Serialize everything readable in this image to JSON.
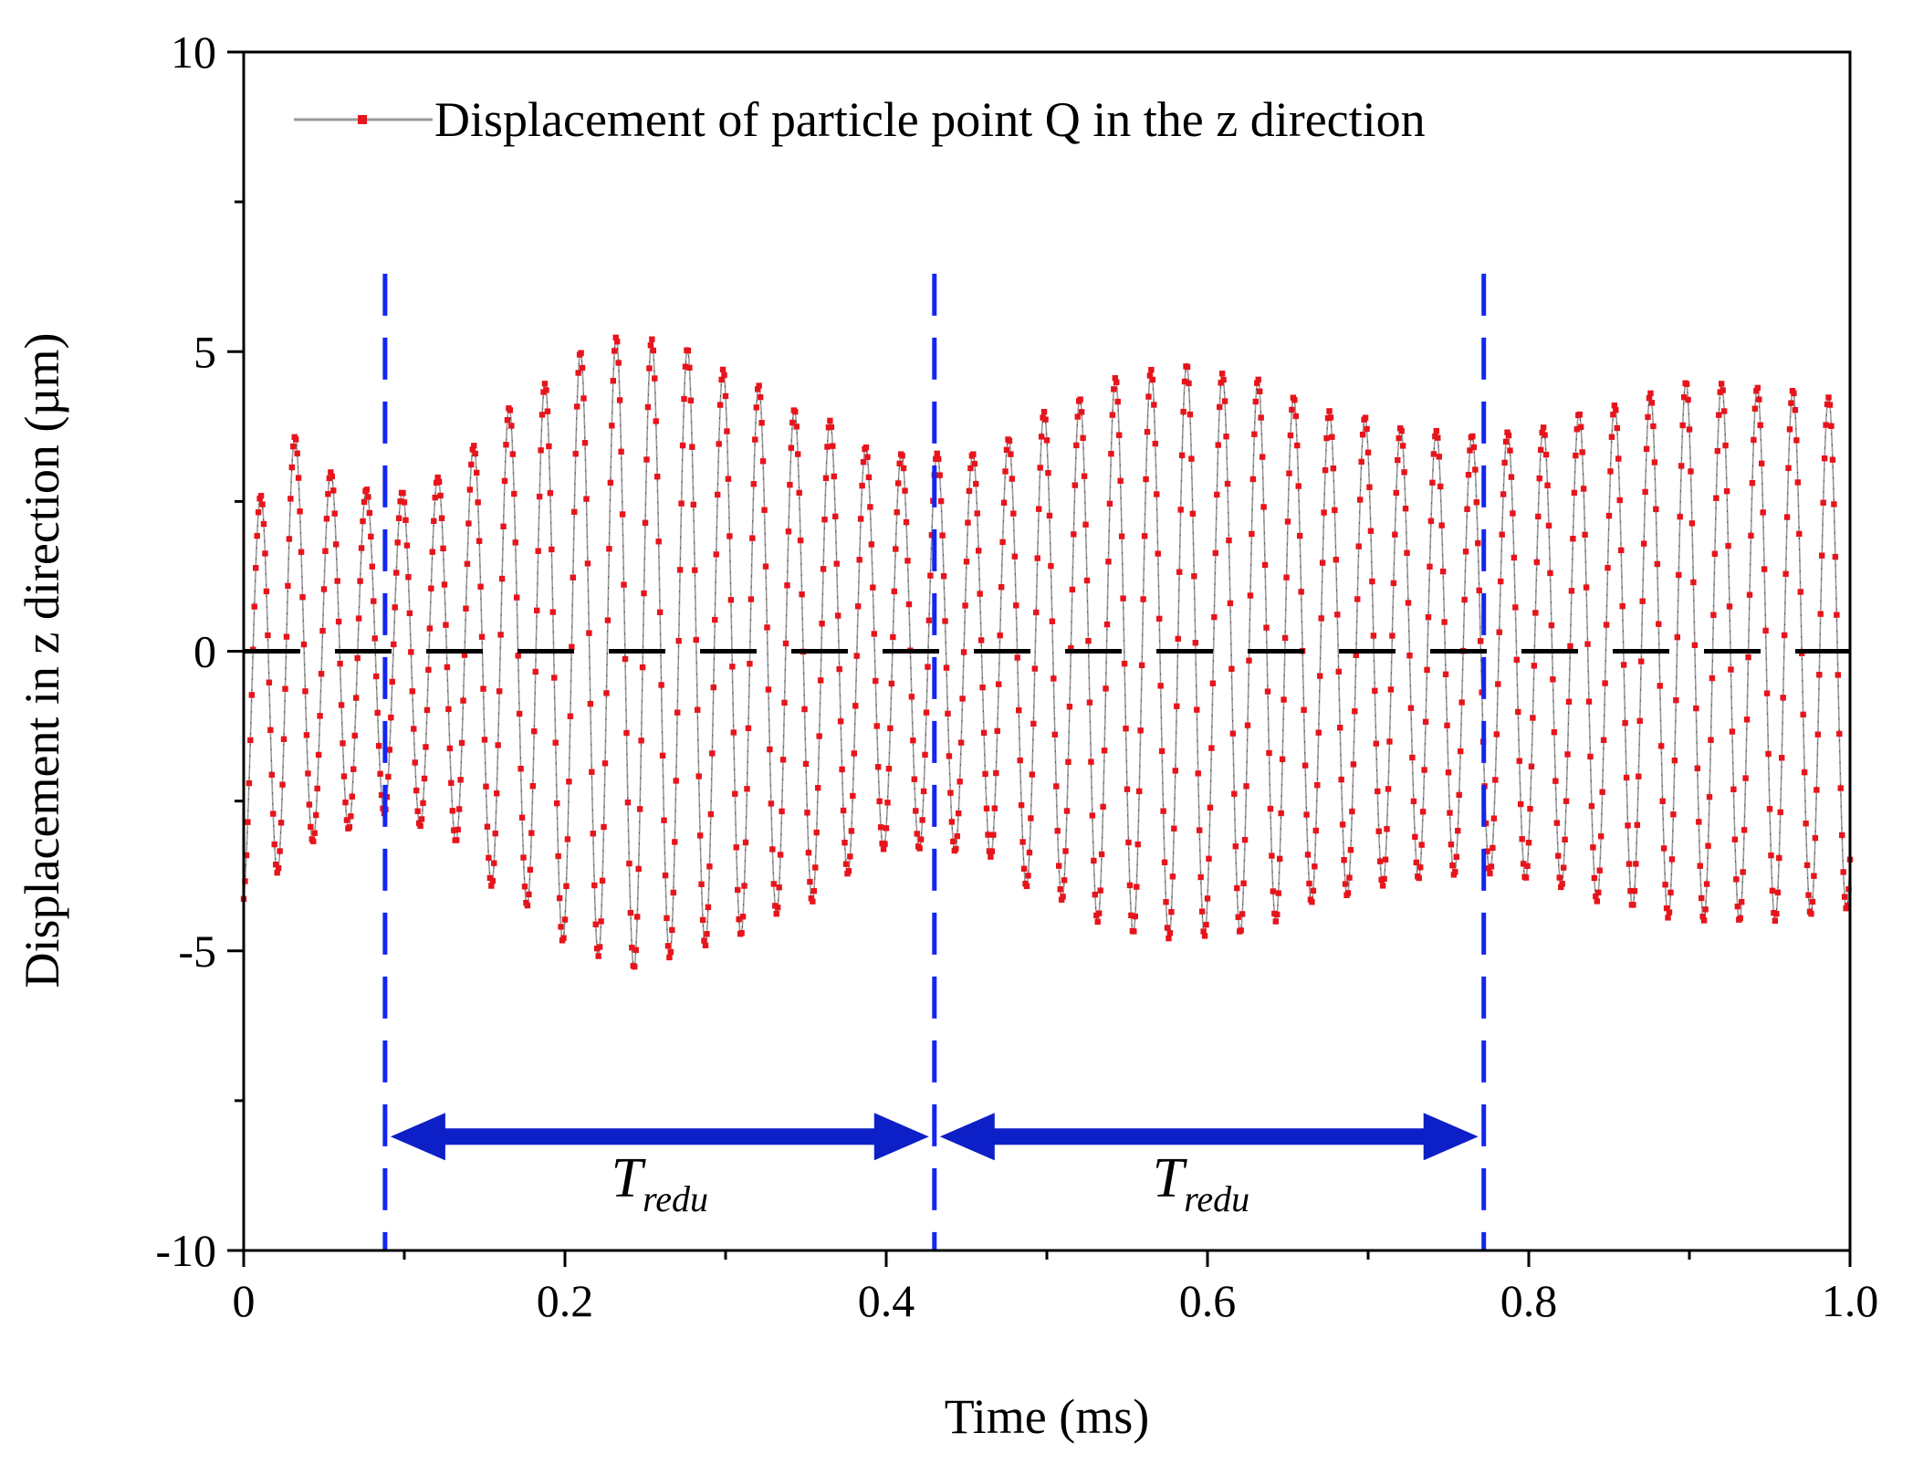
{
  "chart_data": {
    "type": "line",
    "title": "",
    "xlabel": "Time (ms)",
    "ylabel": "Displacement in z direction (µm)",
    "xlim": [
      0,
      1.0
    ],
    "ylim": [
      -10,
      10
    ],
    "x_ticks": [
      {
        "value": 0,
        "label": "0"
      },
      {
        "value": 0.2,
        "label": "0.2"
      },
      {
        "value": 0.4,
        "label": "0.4"
      },
      {
        "value": 0.6,
        "label": "0.6"
      },
      {
        "value": 0.8,
        "label": "0.8"
      },
      {
        "value": 1.0,
        "label": "1.0"
      }
    ],
    "y_ticks": [
      {
        "value": 10,
        "label": "10"
      },
      {
        "value": 5,
        "label": "5"
      },
      {
        "value": 0,
        "label": "0"
      },
      {
        "value": -5,
        "label": "-5"
      },
      {
        "value": -10,
        "label": "-10"
      }
    ],
    "legend": {
      "position": "top-left",
      "entries": [
        "Displacement of particle point Q in the z direction"
      ]
    },
    "series": [
      {
        "name": "Displacement of particle point Q in the z direction",
        "color": "#e8141b",
        "line_color": "#9a9a9a",
        "oscillation_period_ms": 0.0222,
        "envelope": {
          "x": [
            0.0,
            0.02,
            0.05,
            0.09,
            0.12,
            0.17,
            0.21,
            0.24,
            0.27,
            0.3,
            0.35,
            0.4,
            0.43,
            0.46,
            0.5,
            0.55,
            0.58,
            0.62,
            0.68,
            0.73,
            0.77,
            0.8,
            0.85,
            0.9,
            0.95,
            1.0
          ],
          "upper": [
            1.2,
            3.9,
            3.0,
            2.6,
            2.9,
            4.1,
            5.0,
            5.3,
            5.1,
            4.7,
            4.0,
            3.3,
            3.3,
            3.3,
            4.0,
            4.6,
            4.8,
            4.6,
            4.0,
            3.7,
            3.6,
            3.7,
            4.1,
            4.5,
            4.4,
            4.2
          ],
          "lower": [
            -4.3,
            -3.7,
            -3.1,
            -2.7,
            -3.0,
            -4.2,
            -5.0,
            -5.3,
            -5.1,
            -4.8,
            -4.2,
            -3.3,
            -3.3,
            -3.4,
            -4.1,
            -4.7,
            -4.8,
            -4.7,
            -4.1,
            -3.8,
            -3.7,
            -3.8,
            -4.2,
            -4.5,
            -4.5,
            -4.3
          ]
        }
      },
      {
        "name": "zero line",
        "color": "#000000",
        "style": "dashed",
        "x": [
          0,
          1.0
        ],
        "values": [
          0,
          0
        ]
      }
    ],
    "vertical_markers": [
      {
        "x": 0.088,
        "color": "#1326f0",
        "style": "dashed"
      },
      {
        "x": 0.43,
        "color": "#1326f0",
        "style": "dashed"
      },
      {
        "x": 0.772,
        "color": "#1326f0",
        "style": "dashed"
      }
    ],
    "annotations": [
      {
        "type": "double-arrow",
        "x_start": 0.088,
        "x_end": 0.43,
        "y": -8.1,
        "color": "#0d1fc7",
        "label": "T",
        "label_sub": "redu",
        "label_x": 0.259,
        "label_y": -9.1
      },
      {
        "type": "double-arrow",
        "x_start": 0.43,
        "x_end": 0.772,
        "y": -8.1,
        "color": "#0d1fc7",
        "label": "T",
        "label_sub": "redu",
        "label_x": 0.596,
        "label_y": -9.1
      }
    ]
  }
}
